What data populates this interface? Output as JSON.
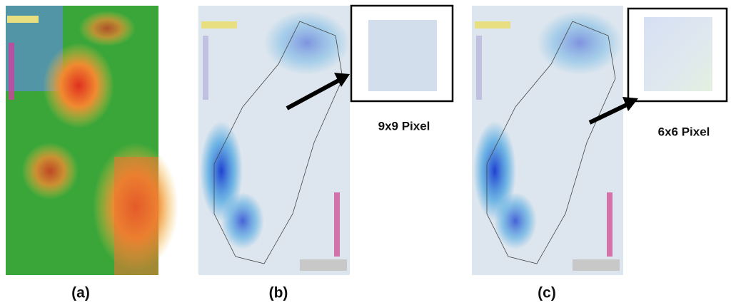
{
  "panels": [
    {
      "label": "(a)"
    },
    {
      "label": "(b)",
      "inset_label": "9x9 Pixel"
    },
    {
      "label": "(c)",
      "inset_label": "6x6 Pixel"
    }
  ]
}
